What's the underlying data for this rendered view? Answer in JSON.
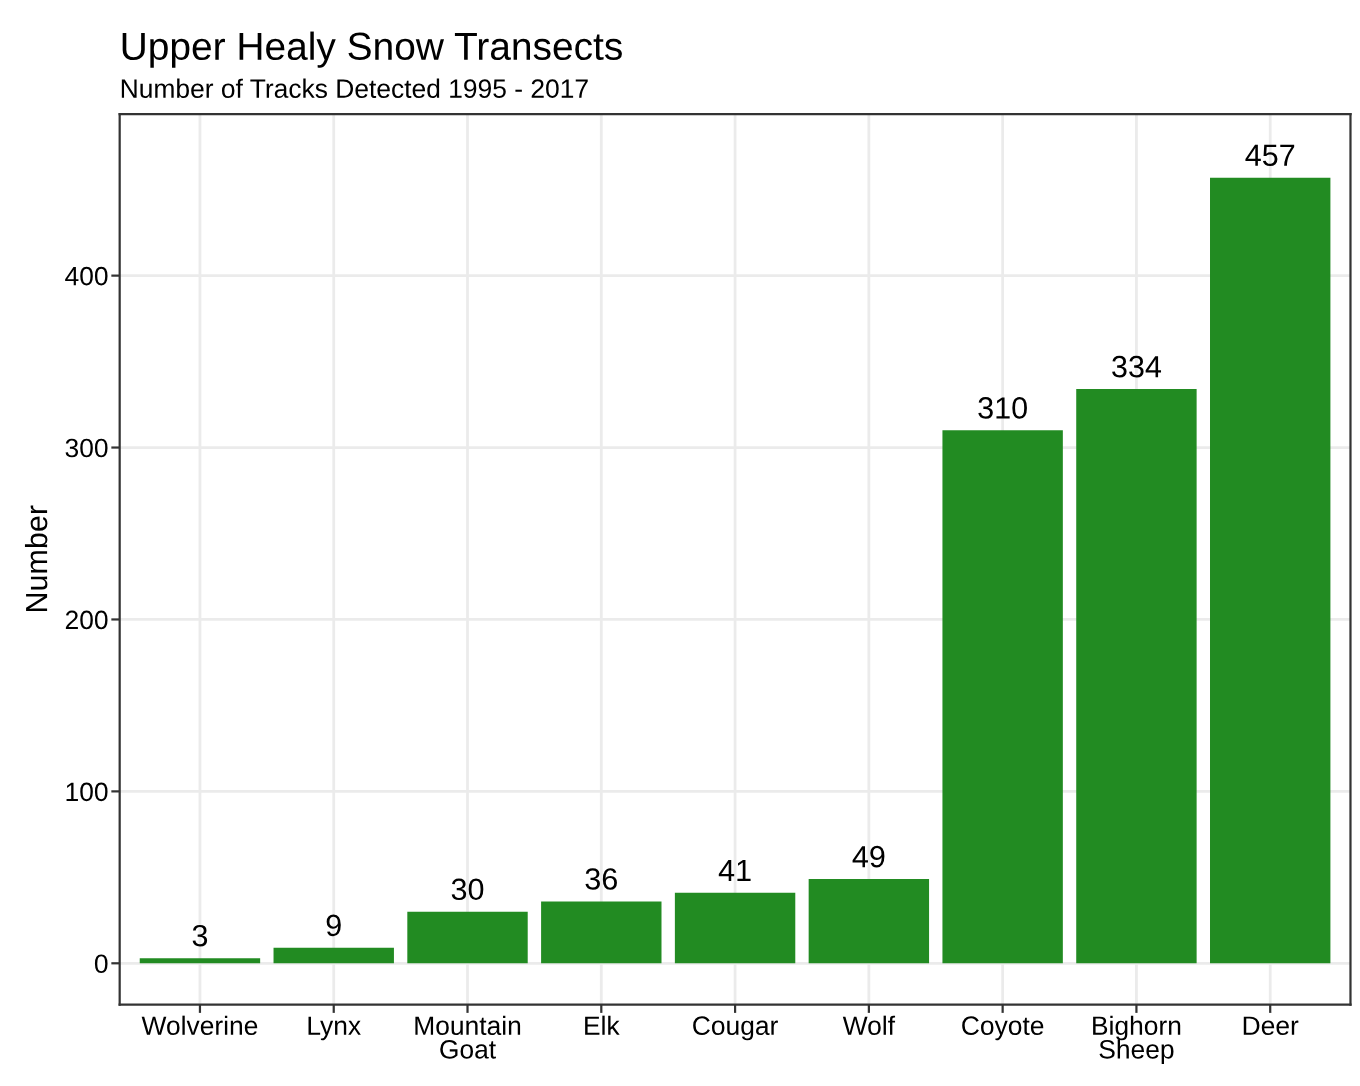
{
  "chart_data": {
    "type": "bar",
    "title": "Upper Healy Snow Transects",
    "subtitle": "Number of Tracks Detected 1995 - 2017",
    "ylabel": "Number",
    "categories": [
      "Wolverine",
      "Lynx",
      "Mountain\nGoat",
      "Elk",
      "Cougar",
      "Wolf",
      "Coyote",
      "Bighorn\nSheep",
      "Deer"
    ],
    "values": [
      3,
      9,
      30,
      36,
      41,
      49,
      310,
      334,
      457
    ],
    "color": "#228b22",
    "data_labels": true,
    "ylim": [
      -24,
      494
    ],
    "yticks": [
      0,
      100,
      200,
      300,
      400
    ],
    "grid": true,
    "legend": false
  }
}
